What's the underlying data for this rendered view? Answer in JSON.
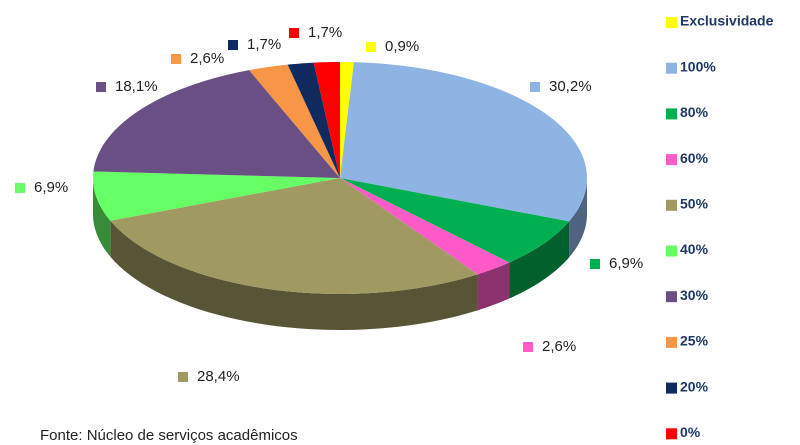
{
  "chart_data": {
    "type": "pie",
    "categories": [
      "Exclusividade",
      "100%",
      "80%",
      "60%",
      "50%",
      "40%",
      "30%",
      "25%",
      "20%",
      "0%"
    ],
    "values": [
      0.9,
      30.2,
      6.9,
      2.6,
      28.4,
      6.9,
      18.1,
      2.6,
      1.7,
      1.7
    ],
    "value_labels": [
      "0,9%",
      "30,2%",
      "6,9%",
      "2,6%",
      "28,4%",
      "6,9%",
      "18,1%",
      "2,6%",
      "1,7%",
      "1,7%"
    ],
    "colors": [
      "#ffff00",
      "#8eb4e3",
      "#00b050",
      "#ff5bc8",
      "#a09a62",
      "#66ff66",
      "#6a4f84",
      "#f79646",
      "#0f2a5e",
      "#ff0000"
    ],
    "legend": "right",
    "source": "Fonte: Núcleo de serviços  acadêmicos"
  }
}
